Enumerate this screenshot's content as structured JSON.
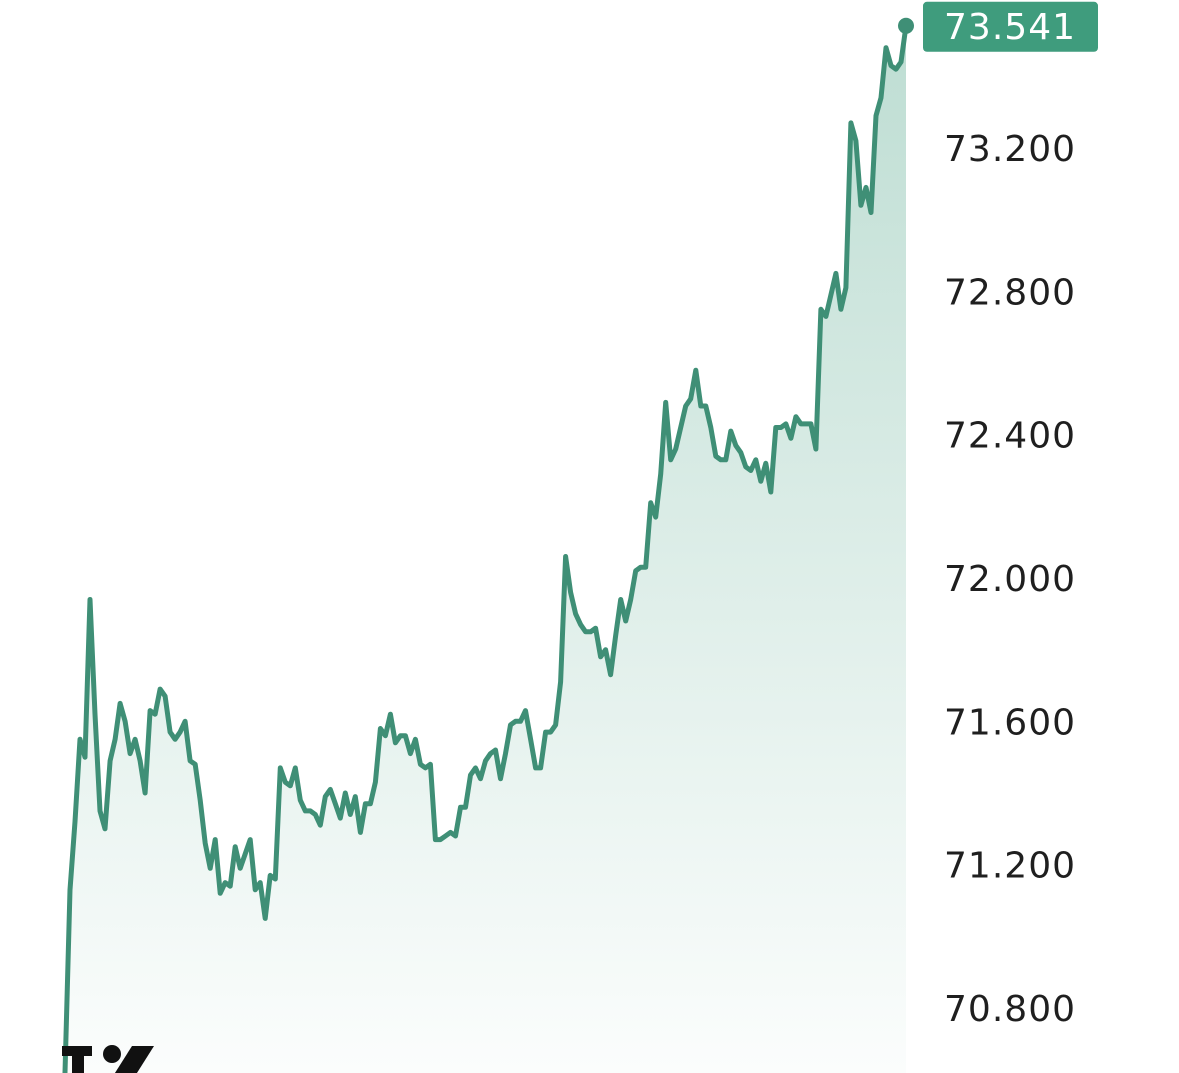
{
  "chart_data": {
    "type": "area",
    "title": "",
    "xlabel": "",
    "ylabel": "",
    "ylim": [
      70.62,
      73.7
    ],
    "y_ticks": [
      "70.800",
      "71.200",
      "71.600",
      "72.000",
      "72.400",
      "72.800",
      "73.200"
    ],
    "last_value": 73.541,
    "last_value_label": "73.541",
    "grid": false,
    "legend": "none",
    "colors": {
      "line": "#3f8f76",
      "fill": "#3f9c7d",
      "badge": "#3f9c7d",
      "badge_text": "#ffffff",
      "tick_text": "#1f1f1f"
    },
    "series": [
      {
        "values": [
          70.62,
          71.13,
          71.32,
          71.55,
          71.5,
          71.94,
          71.62,
          71.35,
          71.3,
          71.49,
          71.55,
          71.65,
          71.6,
          71.51,
          71.55,
          71.49,
          71.4,
          71.63,
          71.62,
          71.69,
          71.67,
          71.57,
          71.55,
          71.57,
          71.6,
          71.49,
          71.48,
          71.38,
          71.26,
          71.19,
          71.27,
          71.12,
          71.15,
          71.14,
          71.25,
          71.19,
          71.23,
          71.27,
          71.13,
          71.15,
          71.05,
          71.17,
          71.16,
          71.47,
          71.43,
          71.42,
          71.47,
          71.38,
          71.35,
          71.35,
          71.34,
          71.31,
          71.39,
          71.41,
          71.37,
          71.33,
          71.4,
          71.34,
          71.39,
          71.29,
          71.37,
          71.37,
          71.43,
          71.58,
          71.56,
          71.62,
          71.54,
          71.56,
          71.56,
          71.51,
          71.55,
          71.48,
          71.47,
          71.48,
          71.27,
          71.27,
          71.28,
          71.29,
          71.28,
          71.36,
          71.36,
          71.45,
          71.47,
          71.44,
          71.49,
          71.51,
          71.52,
          71.44,
          71.51,
          71.59,
          71.6,
          71.6,
          71.63,
          71.55,
          71.47,
          71.47,
          71.57,
          71.57,
          71.59,
          71.71,
          72.06,
          71.96,
          71.9,
          71.87,
          71.85,
          71.85,
          71.86,
          71.78,
          71.8,
          71.73,
          71.84,
          71.94,
          71.88,
          71.94,
          72.02,
          72.03,
          72.03,
          72.21,
          72.17,
          72.29,
          72.49,
          72.33,
          72.36,
          72.42,
          72.48,
          72.5,
          72.58,
          72.48,
          72.48,
          72.42,
          72.34,
          72.33,
          72.33,
          72.41,
          72.37,
          72.35,
          72.31,
          72.3,
          72.33,
          72.27,
          72.32,
          72.24,
          72.42,
          72.42,
          72.43,
          72.39,
          72.45,
          72.43,
          72.43,
          72.43,
          72.36,
          72.75,
          72.73,
          72.79,
          72.85,
          72.75,
          72.81,
          73.27,
          73.22,
          73.04,
          73.09,
          73.02,
          73.29,
          73.34,
          73.48,
          73.43,
          73.42,
          73.44,
          73.541
        ]
      }
    ]
  },
  "logo": {
    "name": "tradingview-logo-icon",
    "color": "#111111"
  }
}
